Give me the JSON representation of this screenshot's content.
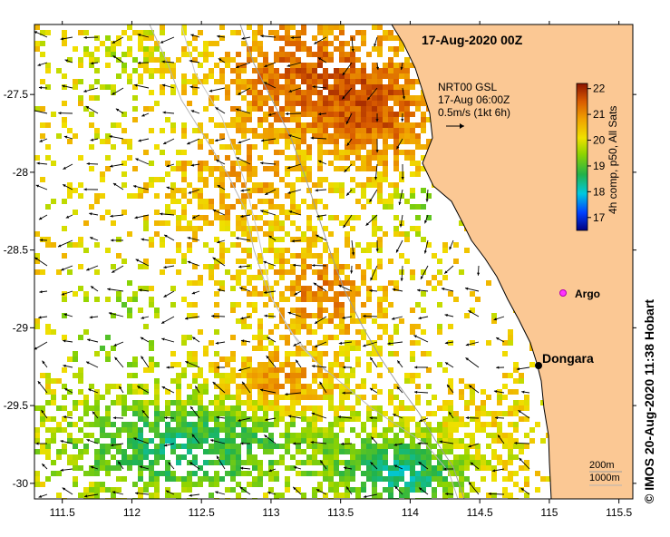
{
  "title": "17-Aug-2020 00Z",
  "vector_info": {
    "line1": "NRT00 GSL",
    "line2": "17-Aug 06:00Z",
    "line3": "0.5m/s (1kt 6h)"
  },
  "colorbar": {
    "label": "4h comp, p50, All Sats",
    "ticks": [
      "22",
      "21",
      "20",
      "19",
      "18",
      "17"
    ],
    "min": 16.5,
    "max": 22.2
  },
  "places": [
    {
      "name": "Dongara",
      "lon": 114.93,
      "lat": -29.25
    },
    {
      "name": "Argo",
      "lon": 115.1,
      "lat": -28.88
    }
  ],
  "depth_legend": {
    "line1": "200m",
    "line2": "1000m"
  },
  "credit": "© IMOS 20-Aug-2020 11:38 Hobart",
  "axes": {
    "x_ticks": [
      "111.5",
      "112",
      "112.5",
      "113",
      "113.5",
      "114",
      "114.5",
      "115",
      "115.5"
    ],
    "y_ticks": [
      "-27.5",
      "-28",
      "-28.5",
      "-29",
      "-29.5",
      "-30"
    ],
    "xlim": [
      111.3,
      115.6
    ],
    "ylim": [
      -30.1,
      -27.05
    ]
  },
  "colors": {
    "land": "#fbc894",
    "coast": "#000000",
    "bathymetry": "#9a9a9a"
  }
}
